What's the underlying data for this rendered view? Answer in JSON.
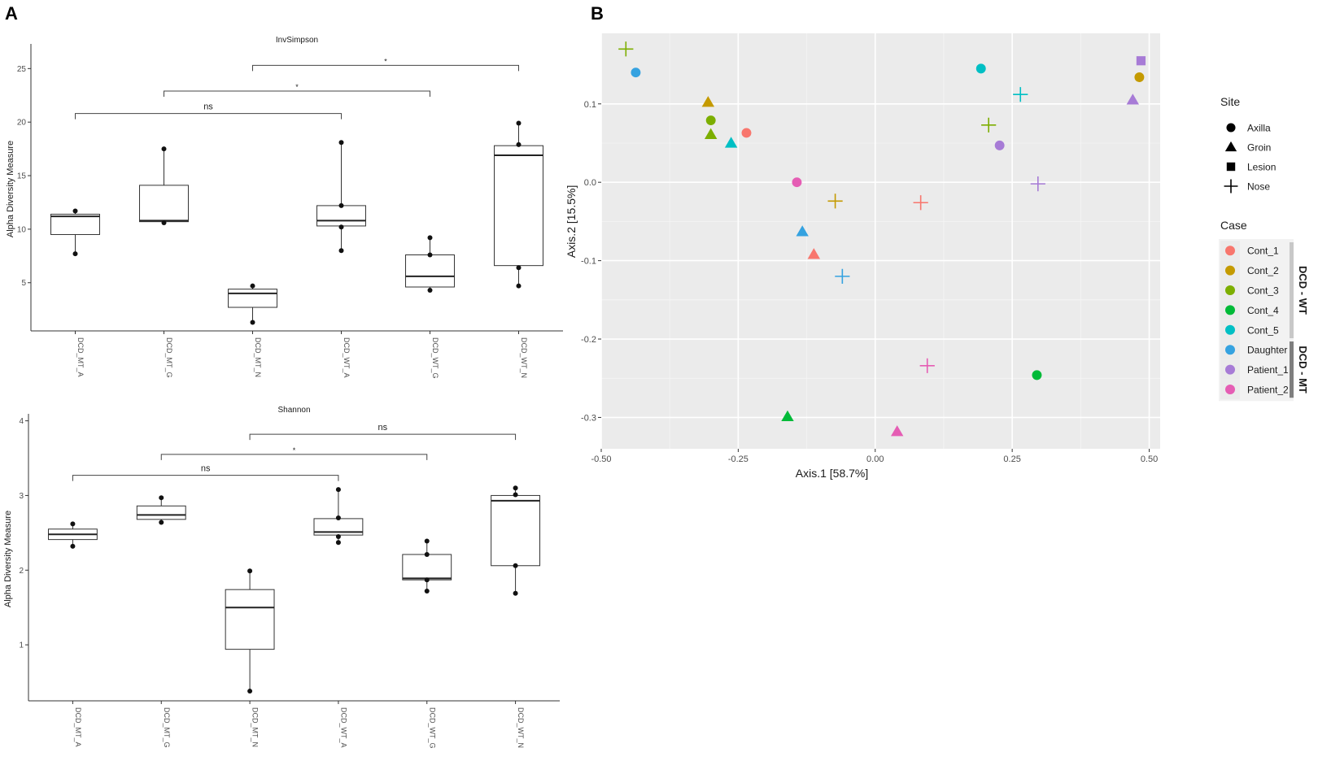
{
  "panels": {
    "a_label": "A",
    "b_label": "B"
  },
  "chart_data": [
    {
      "type": "box",
      "title": "InvSimpson",
      "ylabel": "Alpha Diversity Measure",
      "xlabel": "",
      "ylim": [
        0.5,
        27
      ],
      "yticks": [
        5,
        10,
        15,
        20,
        25
      ],
      "categories": [
        "DCD_MT_A",
        "DCD_MT_G",
        "DCD_MT_N",
        "DCD_WT_A",
        "DCD_WT_G",
        "DCD_WT_N"
      ],
      "boxes": [
        {
          "min": 7.7,
          "q1": 9.5,
          "median": 11.2,
          "q3": 11.4,
          "max": 11.7,
          "points": [
            7.7,
            11.7
          ]
        },
        {
          "min": 10.6,
          "q1": 10.7,
          "median": 10.8,
          "q3": 14.1,
          "max": 17.5,
          "points": [
            10.6,
            17.5
          ]
        },
        {
          "min": 1.3,
          "q1": 2.7,
          "median": 4.0,
          "q3": 4.4,
          "max": 4.7,
          "points": [
            1.3,
            4.7
          ]
        },
        {
          "min": 8.0,
          "q1": 10.3,
          "median": 10.8,
          "q3": 12.2,
          "max": 18.1,
          "points": [
            8.0,
            10.2,
            12.2,
            18.1
          ]
        },
        {
          "min": 4.3,
          "q1": 4.6,
          "median": 5.6,
          "q3": 7.6,
          "max": 9.2,
          "points": [
            4.3,
            7.6,
            9.2
          ]
        },
        {
          "min": 4.7,
          "q1": 6.6,
          "median": 16.9,
          "q3": 17.8,
          "max": 19.9,
          "points": [
            4.7,
            6.4,
            17.9,
            19.9
          ]
        }
      ],
      "comparisons": [
        {
          "from": 0,
          "to": 3,
          "label": "ns",
          "y": 20.8
        },
        {
          "from": 1,
          "to": 4,
          "label": "*",
          "y": 22.9
        },
        {
          "from": 2,
          "to": 5,
          "label": "*",
          "y": 25.3
        }
      ]
    },
    {
      "type": "box",
      "title": "Shannon",
      "ylabel": "Alpha Diversity Measure",
      "xlabel": "",
      "ylim": [
        0.25,
        4.05
      ],
      "yticks": [
        1,
        2,
        3,
        4
      ],
      "categories": [
        "DCD_MT_A",
        "DCD_MT_G",
        "DCD_MT_N",
        "DCD_WT_A",
        "DCD_WT_G",
        "DCD_WT_N"
      ],
      "boxes": [
        {
          "min": 2.32,
          "q1": 2.41,
          "median": 2.48,
          "q3": 2.55,
          "max": 2.62,
          "points": [
            2.32,
            2.62
          ]
        },
        {
          "min": 2.64,
          "q1": 2.68,
          "median": 2.74,
          "q3": 2.86,
          "max": 2.97,
          "points": [
            2.64,
            2.97
          ]
        },
        {
          "min": 0.38,
          "q1": 0.94,
          "median": 1.5,
          "q3": 1.74,
          "max": 1.99,
          "points": [
            0.38,
            1.99
          ]
        },
        {
          "min": 2.37,
          "q1": 2.47,
          "median": 2.51,
          "q3": 2.69,
          "max": 3.08,
          "points": [
            2.37,
            2.45,
            2.7,
            3.08
          ]
        },
        {
          "min": 1.72,
          "q1": 1.87,
          "median": 1.89,
          "q3": 2.21,
          "max": 2.39,
          "points": [
            1.72,
            1.87,
            2.21,
            2.39
          ]
        },
        {
          "min": 1.69,
          "q1": 2.06,
          "median": 2.93,
          "q3": 3.0,
          "max": 3.1,
          "points": [
            1.69,
            2.06,
            3.01,
            3.1
          ]
        }
      ],
      "comparisons": [
        {
          "from": 0,
          "to": 3,
          "label": "ns",
          "y": 3.27
        },
        {
          "from": 1,
          "to": 4,
          "label": "*",
          "y": 3.55
        },
        {
          "from": 2,
          "to": 5,
          "label": "ns",
          "y": 3.82
        }
      ]
    },
    {
      "type": "scatter",
      "xlabel": "Axis.1   [58.7%]",
      "ylabel": "Axis.2   [15.5%]",
      "xlim": [
        -0.5,
        0.52
      ],
      "ylim": [
        -0.34,
        0.19
      ],
      "xticks": [
        -0.5,
        -0.25,
        0.0,
        0.25,
        0.5
      ],
      "xtick_labels": [
        "-0.50",
        "-0.25",
        "0.00",
        "0.25",
        "0.50"
      ],
      "yticks": [
        -0.3,
        -0.2,
        -0.1,
        0.0,
        0.1
      ],
      "ytick_labels": [
        "-0.3",
        "-0.2",
        "-0.1",
        "0.0",
        "0.1"
      ],
      "legend_site": {
        "title": "Site",
        "entries": [
          {
            "label": "Axilla",
            "shape": "circle"
          },
          {
            "label": "Groin",
            "shape": "triangle"
          },
          {
            "label": "Lesion",
            "shape": "square"
          },
          {
            "label": "Nose",
            "shape": "cross"
          }
        ]
      },
      "legend_case": {
        "title": "Case",
        "entries": [
          {
            "label": "Cont_1",
            "color": "#F8766D"
          },
          {
            "label": "Cont_2",
            "color": "#C49A00"
          },
          {
            "label": "Cont_3",
            "color": "#7CAE00"
          },
          {
            "label": "Cont_4",
            "color": "#00BA38"
          },
          {
            "label": "Cont_5",
            "color": "#00BFC4"
          },
          {
            "label": "Daughter",
            "color": "#35A2E0"
          },
          {
            "label": "Patient_1",
            "color": "#A77BD6"
          },
          {
            "label": "Patient_2",
            "color": "#E55DB4"
          }
        ],
        "groups": [
          {
            "label": "DCD - WT",
            "first": 0,
            "last": 4,
            "color": "#c8c8c8"
          },
          {
            "label": "DCD - MT",
            "first": 5,
            "last": 7,
            "color": "#7f7f7f"
          }
        ]
      },
      "points": [
        {
          "x": -0.455,
          "y": 0.17,
          "shape": "cross",
          "case": "Cont_3"
        },
        {
          "x": -0.437,
          "y": 0.14,
          "shape": "circle",
          "case": "Daughter"
        },
        {
          "x": -0.305,
          "y": 0.102,
          "shape": "triangle",
          "case": "Cont_2"
        },
        {
          "x": -0.3,
          "y": 0.079,
          "shape": "circle",
          "case": "Cont_3"
        },
        {
          "x": -0.3,
          "y": 0.061,
          "shape": "triangle",
          "case": "Cont_3"
        },
        {
          "x": -0.263,
          "y": 0.05,
          "shape": "triangle",
          "case": "Cont_5"
        },
        {
          "x": -0.235,
          "y": 0.063,
          "shape": "circle",
          "case": "Cont_1"
        },
        {
          "x": -0.143,
          "y": 0.0,
          "shape": "circle",
          "case": "Patient_2"
        },
        {
          "x": -0.073,
          "y": -0.024,
          "shape": "cross",
          "case": "Cont_2"
        },
        {
          "x": -0.133,
          "y": -0.063,
          "shape": "triangle",
          "case": "Daughter"
        },
        {
          "x": -0.112,
          "y": -0.092,
          "shape": "triangle",
          "case": "Cont_1"
        },
        {
          "x": -0.06,
          "y": -0.12,
          "shape": "cross",
          "case": "Daughter"
        },
        {
          "x": -0.16,
          "y": -0.299,
          "shape": "triangle",
          "case": "Cont_4"
        },
        {
          "x": 0.04,
          "y": -0.318,
          "shape": "triangle",
          "case": "Patient_2"
        },
        {
          "x": 0.083,
          "y": -0.026,
          "shape": "cross",
          "case": "Cont_1"
        },
        {
          "x": 0.095,
          "y": -0.234,
          "shape": "cross",
          "case": "Patient_2"
        },
        {
          "x": 0.193,
          "y": 0.145,
          "shape": "circle",
          "case": "Cont_5"
        },
        {
          "x": 0.207,
          "y": 0.073,
          "shape": "cross",
          "case": "Cont_3"
        },
        {
          "x": 0.227,
          "y": 0.047,
          "shape": "circle",
          "case": "Patient_1"
        },
        {
          "x": 0.265,
          "y": 0.112,
          "shape": "cross",
          "case": "Cont_5"
        },
        {
          "x": 0.297,
          "y": -0.002,
          "shape": "cross",
          "case": "Patient_1"
        },
        {
          "x": 0.295,
          "y": -0.246,
          "shape": "circle",
          "case": "Cont_4"
        },
        {
          "x": 0.47,
          "y": 0.105,
          "shape": "triangle",
          "case": "Patient_1"
        },
        {
          "x": 0.482,
          "y": 0.134,
          "shape": "circle",
          "case": "Cont_2"
        },
        {
          "x": 0.485,
          "y": 0.155,
          "shape": "square",
          "case": "Patient_1"
        }
      ]
    }
  ]
}
